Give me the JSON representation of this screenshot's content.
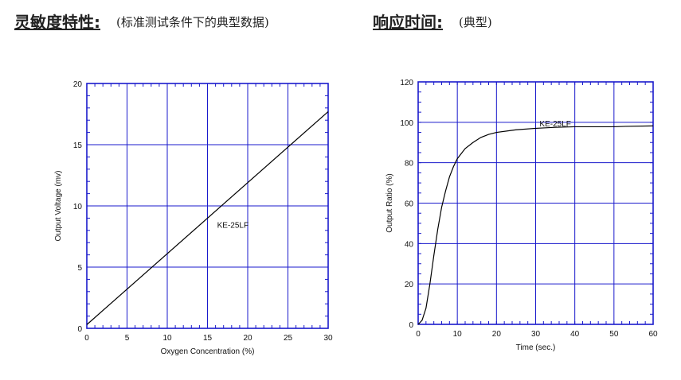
{
  "headers": {
    "left_title": "灵敏度特性:",
    "left_subtitle": "(标准测试条件下的典型数据)",
    "right_title": "响应时间:",
    "right_subtitle": "(典型)"
  },
  "colors": {
    "grid": "#1a1acc",
    "line": "#000000"
  },
  "chart_data": [
    {
      "type": "line",
      "xlabel": "Oxygen Concentration (%)",
      "ylabel": "Output Voltage (mv)",
      "xlim": [
        0,
        30
      ],
      "ylim": [
        0,
        20
      ],
      "xticks": [
        0,
        5,
        10,
        15,
        20,
        25,
        30
      ],
      "yticks": [
        0,
        5,
        10,
        15,
        20
      ],
      "grid": true,
      "annotation": "KE-25LF",
      "series": [
        {
          "x": [
            0,
            30
          ],
          "y": [
            0.3,
            17.7
          ]
        }
      ]
    },
    {
      "type": "line",
      "xlabel": "Time (sec.)",
      "ylabel": "Output Ratio (%)",
      "xlim": [
        0,
        60
      ],
      "ylim": [
        0,
        120
      ],
      "xticks": [
        0,
        10,
        20,
        30,
        40,
        50,
        60
      ],
      "yticks": [
        0,
        20,
        40,
        60,
        80,
        100,
        120
      ],
      "grid": true,
      "annotation": "KE-25LF",
      "series": [
        {
          "x": [
            0,
            1,
            2,
            3,
            4,
            5,
            6,
            7,
            8,
            9,
            10,
            12,
            14,
            16,
            18,
            20,
            25,
            30,
            35,
            40,
            50,
            53,
            60
          ],
          "y": [
            0,
            2,
            8,
            20,
            34,
            47,
            58,
            66,
            73,
            78,
            82,
            87,
            90,
            92.5,
            94,
            95,
            96.3,
            97,
            97.5,
            97.8,
            97.8,
            98,
            98.2
          ]
        }
      ]
    }
  ]
}
